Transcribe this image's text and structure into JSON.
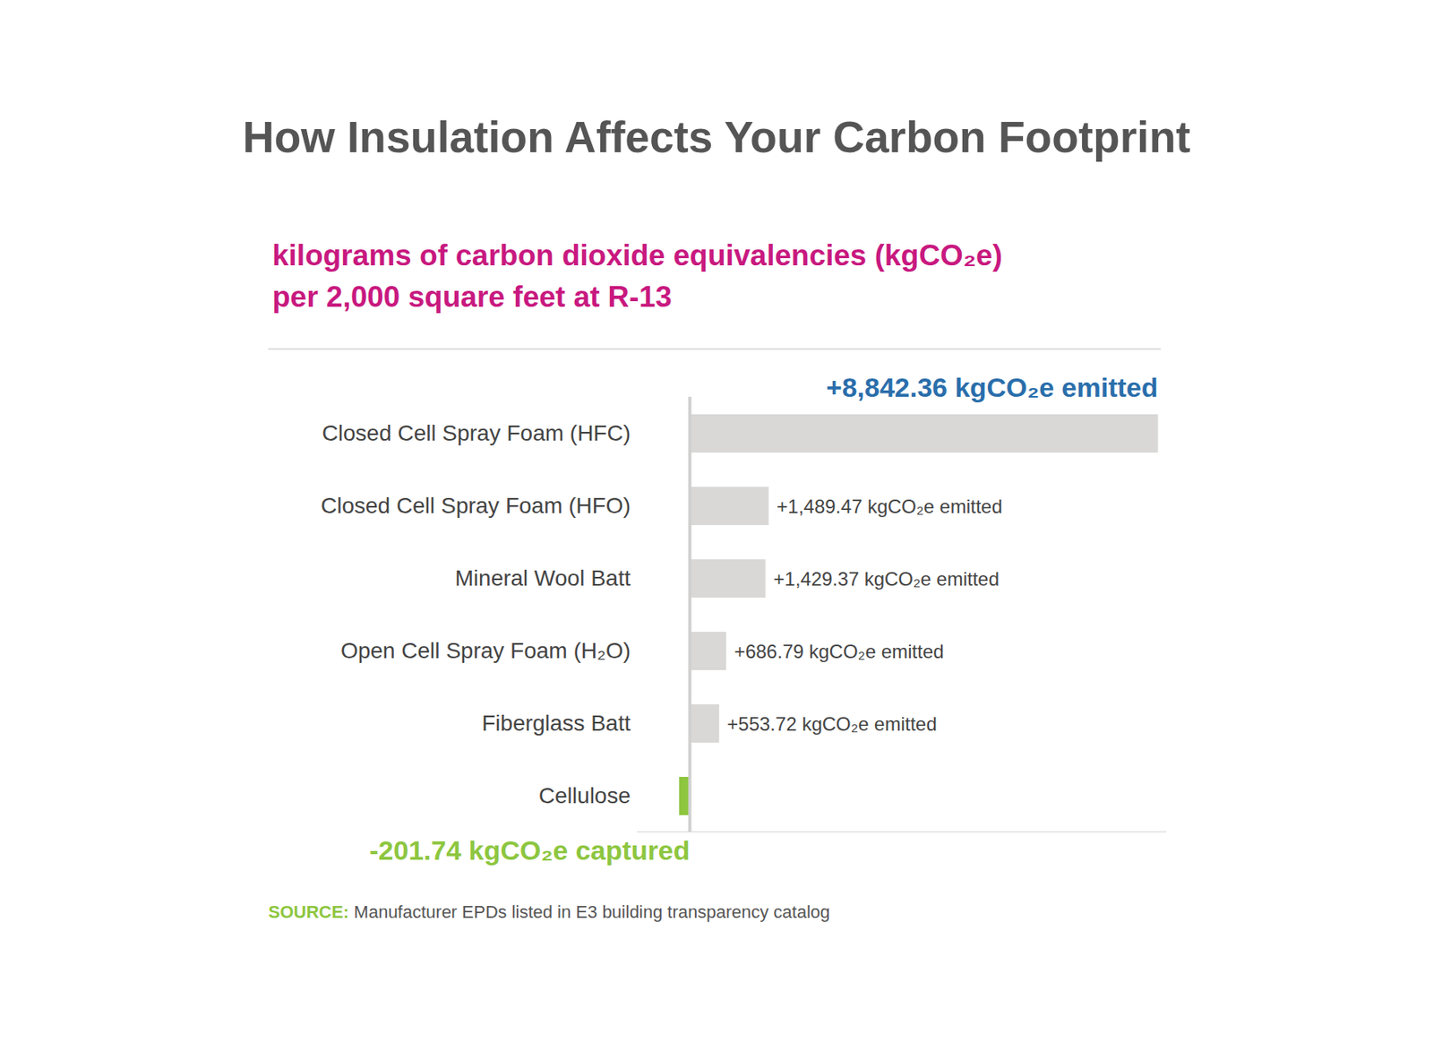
{
  "chart_data": {
    "type": "bar",
    "orientation": "horizontal",
    "title": "How Insulation Affects Your Carbon Footprint",
    "subtitle": [
      "kilograms of carbon dioxide equivalencies (kgCO₂e)",
      "per 2,000 square feet at R-13"
    ],
    "categories": [
      "Closed Cell Spray Foam (HFC)",
      "Closed Cell Spray Foam (HFO)",
      "Mineral Wool Batt",
      "Open Cell Spray Foam (H₂O)",
      "Fiberglass Batt",
      "Cellulose"
    ],
    "values": [
      8842.36,
      1489.47,
      1429.37,
      686.79,
      553.72,
      -201.74
    ],
    "value_labels": [
      "+8,842.36 kgCO₂e emitted",
      "+1,489.47 kgCO₂e emitted",
      "+1,429.37 kgCO₂e emitted",
      "+686.79 kgCO₂e emitted",
      "+553.72 kgCO₂e emitted",
      "-201.74 kgCO₂e captured"
    ],
    "colors": [
      "#d9d8d6",
      "#d9d8d6",
      "#d9d8d6",
      "#d9d8d6",
      "#d9d8d6",
      "#8dc63f"
    ],
    "data_labels": true,
    "tick_labels": false,
    "grid": false,
    "xlim": [
      -1000,
      9000
    ],
    "source": {
      "label": "SOURCE:",
      "text": "Manufacturer EPDs listed in E3 building transparency catalog"
    }
  }
}
